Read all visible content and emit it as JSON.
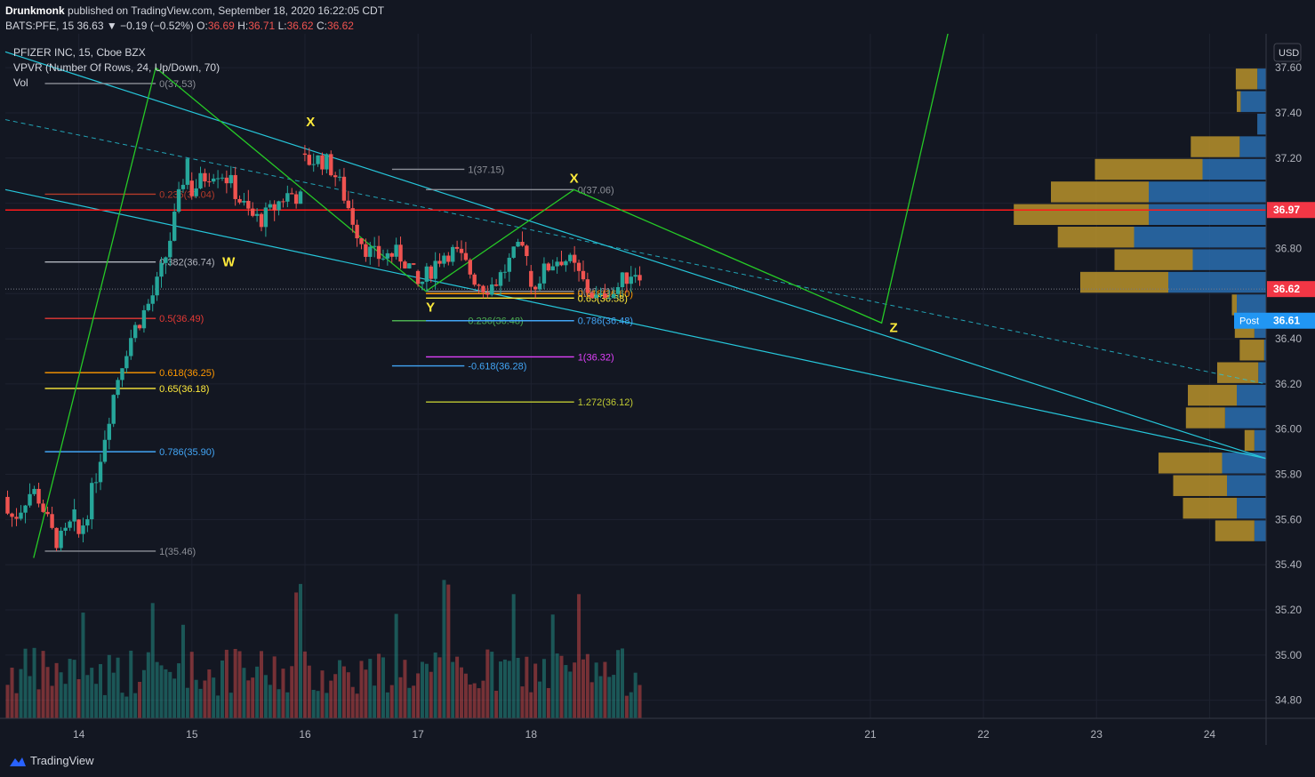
{
  "header": {
    "author": "Drunkmonk",
    "published": "published on TradingView.com, September 18, 2020 16:22:05 CDT",
    "symbol": "BATS:PFE, 15",
    "last": "36.63",
    "change": "▼ −0.19 (−0.52%)",
    "o_label": "O:",
    "o": "36.69",
    "h_label": "H:",
    "h": "36.71",
    "l_label": "L:",
    "l": "36.62",
    "c_label": "C:",
    "c": "36.62"
  },
  "legend": {
    "title": "PFIZER INC, 15, Cboe BZX",
    "vpvr": "VPVR (Number Of Rows, 24, Up/Down, 70)",
    "vol": "Vol"
  },
  "currency_button": "USD",
  "price_badges": {
    "resistance": "36.97",
    "last": "36.62",
    "post_label": "Post",
    "post": "36.61"
  },
  "footer": {
    "brand": "TradingView"
  },
  "colors": {
    "background": "#131722",
    "up": "#26a69a",
    "down": "#ef5350",
    "channel": "#26c6da",
    "pattern": "#26c926",
    "resistance": "#ff1a1a",
    "vpvr_up": "#2a6fb0",
    "vpvr_down": "#b8922a",
    "label_yellow": "#ffeb3b"
  },
  "chart_data": {
    "type": "candlestick",
    "ylim": [
      34.72,
      37.75
    ],
    "yticks": [
      34.8,
      35.0,
      35.2,
      35.4,
      35.6,
      35.8,
      36.0,
      36.2,
      36.4,
      36.6,
      36.8,
      37.0,
      37.2,
      37.4,
      37.6
    ],
    "ytick_labels": [
      "34.80",
      "35.00",
      "35.20",
      "35.40",
      "35.60",
      "35.80",
      "36.00",
      "36.20",
      "36.40",
      "",
      "36.80",
      "",
      "37.20",
      "37.40",
      "37.60"
    ],
    "xlim": [
      13.35,
      24.5
    ],
    "xticks": [
      14,
      15,
      16,
      17,
      18,
      21,
      22,
      23,
      24
    ],
    "xtick_labels": [
      "14",
      "15",
      "16",
      "17",
      "18",
      "21",
      "22",
      "23",
      "24"
    ],
    "sessions": [
      {
        "start": 13.35,
        "end": 13.98,
        "open": 35.7,
        "close": 35.55,
        "low": 35.46,
        "high": 35.88
      },
      {
        "start": 13.98,
        "end": 14.98,
        "open": 35.6,
        "close": 37.15,
        "low": 35.46,
        "high": 37.53
      },
      {
        "start": 14.98,
        "end": 15.98,
        "open": 37.1,
        "close": 36.95,
        "low": 36.8,
        "high": 37.2
      },
      {
        "start": 15.98,
        "end": 16.98,
        "open": 37.22,
        "close": 36.62,
        "low": 36.6,
        "high": 37.3
      },
      {
        "start": 16.98,
        "end": 17.98,
        "open": 36.7,
        "close": 36.72,
        "low": 36.58,
        "high": 37.15
      },
      {
        "start": 17.98,
        "end": 18.98,
        "open": 36.7,
        "close": 36.62,
        "low": 36.58,
        "high": 37.06
      }
    ],
    "resistance_level": 36.97,
    "fib_sets": [
      {
        "x1": 13.7,
        "x2": 14.68,
        "levels": [
          {
            "label": "0(37.53)",
            "price": 37.53,
            "color": "#8c8f97"
          },
          {
            "label": "0.236(37.04)",
            "price": 37.04,
            "color": "#b33a2a"
          },
          {
            "label": "0.382(36.74)",
            "price": 36.74,
            "color": "#b2b5be"
          },
          {
            "label": "0.5(36.49)",
            "price": 36.49,
            "color": "#e53935"
          },
          {
            "label": "0.618(36.25)",
            "price": 36.25,
            "color": "#ff9800"
          },
          {
            "label": "0.65(36.18)",
            "price": 36.18,
            "color": "#ffeb3b"
          },
          {
            "label": "0.786(35.90)",
            "price": 35.9,
            "color": "#42a5f5"
          },
          {
            "label": "1(35.46)",
            "price": 35.46,
            "color": "#8c8f97"
          }
        ]
      },
      {
        "x1": 16.77,
        "x2": 17.41,
        "levels": [
          {
            "label": "1(37.15)",
            "price": 37.15,
            "color": "#8c8f97"
          },
          {
            "label": "0.236(36.48)",
            "price": 36.48,
            "color": "#4caf50"
          },
          {
            "label": "-0.618(36.28)",
            "price": 36.28,
            "color": "#42a5f5"
          }
        ]
      },
      {
        "x1": 17.07,
        "x2": 18.38,
        "levels": [
          {
            "label": "0(37.06)",
            "price": 37.06,
            "color": "#8c8f97"
          },
          {
            "label": "0(36.61)",
            "price": 36.61,
            "color": "#8c8f97"
          },
          {
            "label": "0.618(36.60)",
            "price": 36.6,
            "color": "#ff9800"
          },
          {
            "label": "0.65(36.58)",
            "price": 36.58,
            "color": "#ffeb3b"
          },
          {
            "label": "0.786(36.48)",
            "price": 36.48,
            "color": "#42a5f5"
          },
          {
            "label": "1(36.32)",
            "price": 36.32,
            "color": "#e040fb"
          },
          {
            "label": "1.272(36.12)",
            "price": 36.12,
            "color": "#c0ca33"
          }
        ]
      }
    ],
    "wxyz_labels": [
      {
        "text": "X",
        "date": 16.01,
        "price": 37.34
      },
      {
        "text": "W",
        "date": 15.27,
        "price": 36.72
      },
      {
        "text": "Y",
        "date": 17.07,
        "price": 36.52
      },
      {
        "text": "X",
        "date": 18.34,
        "price": 37.09
      },
      {
        "text": "Z",
        "date": 21.17,
        "price": 36.43
      }
    ],
    "pattern_path": [
      {
        "date": 13.6,
        "price": 35.43
      },
      {
        "date": 14.68,
        "price": 37.6
      },
      {
        "date": 17.07,
        "price": 36.61
      },
      {
        "date": 18.38,
        "price": 37.06
      },
      {
        "date": 21.1,
        "price": 36.47
      },
      {
        "date": 21.8,
        "price": 38.0
      }
    ],
    "channel_upper": [
      {
        "date": 13.35,
        "price": 37.67
      },
      {
        "date": 24.5,
        "price": 35.87
      }
    ],
    "channel_lower": [
      {
        "date": 13.35,
        "price": 37.06
      },
      {
        "date": 24.5,
        "price": 35.87
      }
    ],
    "channel_mid": [
      {
        "date": 13.35,
        "price": 37.37
      },
      {
        "date": 24.5,
        "price": 36.2
      }
    ],
    "vpvr": [
      {
        "price": 37.5,
        "up": 0.22,
        "down": 0.09
      },
      {
        "price": 37.4,
        "up": 0.04,
        "down": 0.26
      },
      {
        "price": 37.3,
        "up": 0.0,
        "down": 0.09
      },
      {
        "price": 37.2,
        "up": 0.5,
        "down": 0.27
      },
      {
        "price": 37.1,
        "up": 1.1,
        "down": 0.65
      },
      {
        "price": 37.0,
        "up": 1.0,
        "down": 1.2
      },
      {
        "price": 36.9,
        "up": 1.38,
        "down": 1.2
      },
      {
        "price": 36.8,
        "up": 0.78,
        "down": 1.35
      },
      {
        "price": 36.7,
        "up": 0.8,
        "down": 0.75
      },
      {
        "price": 36.6,
        "up": 0.9,
        "down": 1.0
      },
      {
        "price": 36.5,
        "up": 0.05,
        "down": 0.3
      },
      {
        "price": 36.4,
        "up": 0.2,
        "down": 0.12
      },
      {
        "price": 36.3,
        "up": 0.25,
        "down": 0.02
      },
      {
        "price": 36.2,
        "up": 0.42,
        "down": 0.08
      },
      {
        "price": 36.1,
        "up": 0.5,
        "down": 0.3
      },
      {
        "price": 36.0,
        "up": 0.4,
        "down": 0.42
      },
      {
        "price": 35.9,
        "up": 0.1,
        "down": 0.12
      },
      {
        "price": 35.8,
        "up": 0.65,
        "down": 0.45
      },
      {
        "price": 35.7,
        "up": 0.55,
        "down": 0.4
      },
      {
        "price": 35.6,
        "up": 0.55,
        "down": 0.3
      },
      {
        "price": 35.5,
        "up": 0.4,
        "down": 0.12
      }
    ]
  }
}
